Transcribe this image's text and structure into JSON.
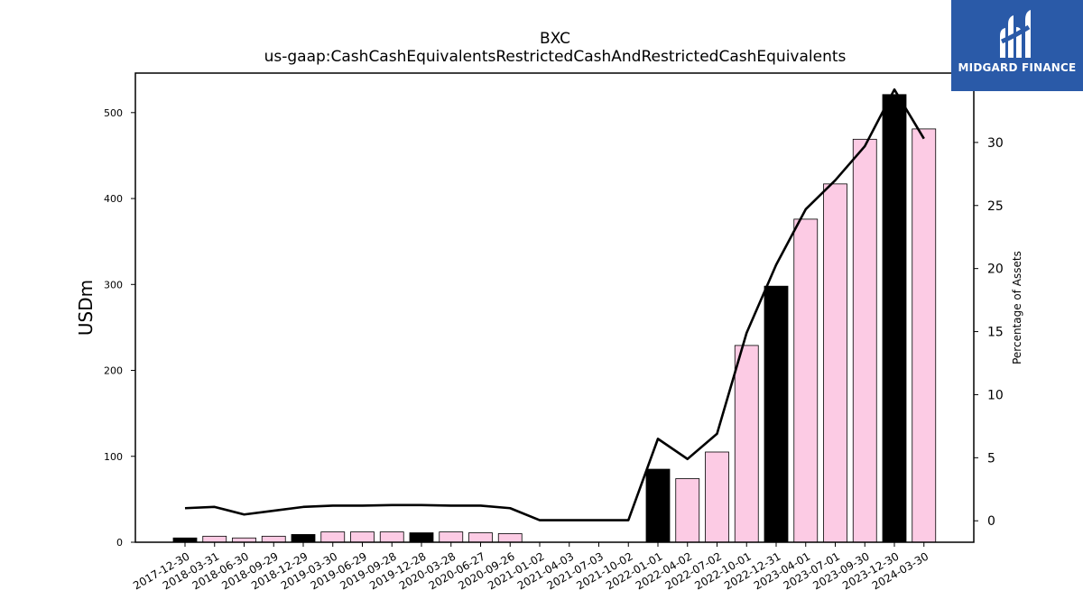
{
  "header": {
    "title": "BXC",
    "subtitle": "us-gaap:CashCashEquivalentsRestrictedCashAndRestrictedCashEquivalents"
  },
  "logo": {
    "text": "MIDGARD FINANCE",
    "icon": "midgard-logo-icon",
    "background": "#2a5aa8"
  },
  "chart_data": {
    "type": "bar",
    "title": "BXC",
    "subtitle": "us-gaap:CashCashEquivalentsRestrictedCashAndRestrictedCashEquivalents",
    "ylabel": "USDm",
    "y2label": "Percentage of Assets",
    "categories": [
      "2017-12-30",
      "2018-03-31",
      "2018-06-30",
      "2018-09-29",
      "2018-12-29",
      "2019-03-30",
      "2019-06-29",
      "2019-09-28",
      "2019-12-28",
      "2020-03-28",
      "2020-06-27",
      "2020-09-26",
      "2021-01-02",
      "2021-04-03",
      "2021-07-03",
      "2021-10-02",
      "2022-01-01",
      "2022-04-02",
      "2022-07-02",
      "2022-10-01",
      "2022-12-31",
      "2023-04-01",
      "2023-07-01",
      "2023-09-30",
      "2023-12-30",
      "2024-03-30"
    ],
    "series": [
      {
        "type": "bar",
        "axis": "left",
        "values": [
          5,
          7,
          5,
          7,
          9,
          12,
          12,
          12,
          11,
          12,
          11,
          10,
          0,
          0,
          0,
          0,
          85,
          74,
          105,
          229,
          298,
          376,
          417,
          469,
          521,
          481
        ]
      },
      {
        "type": "line",
        "axis": "right",
        "values": [
          1.0,
          1.1,
          0.5,
          0.8,
          1.1,
          1.2,
          1.2,
          1.25,
          1.25,
          1.2,
          1.2,
          1.0,
          0.05,
          0.05,
          0.05,
          0.05,
          6.5,
          4.9,
          6.9,
          14.9,
          20.3,
          24.7,
          27.0,
          29.7,
          34.2,
          30.3
        ]
      }
    ],
    "year_end_flags": [
      true,
      false,
      false,
      false,
      true,
      false,
      false,
      false,
      true,
      false,
      false,
      false,
      true,
      false,
      false,
      false,
      true,
      false,
      false,
      false,
      true,
      false,
      false,
      false,
      true,
      false
    ],
    "colors": {
      "year_end_bar": "#000000",
      "quarter_bar": "#fccbe4",
      "bar_edge": "#000000",
      "line": "#000000"
    },
    "ylim": [
      0,
      546
    ],
    "y2lim": [
      -1.7,
      35.5
    ],
    "yticks": [
      0,
      100,
      200,
      300,
      400,
      500
    ],
    "y2ticks": [
      0,
      5,
      10,
      15,
      20,
      25,
      30
    ],
    "grid": false,
    "legend": "none"
  }
}
